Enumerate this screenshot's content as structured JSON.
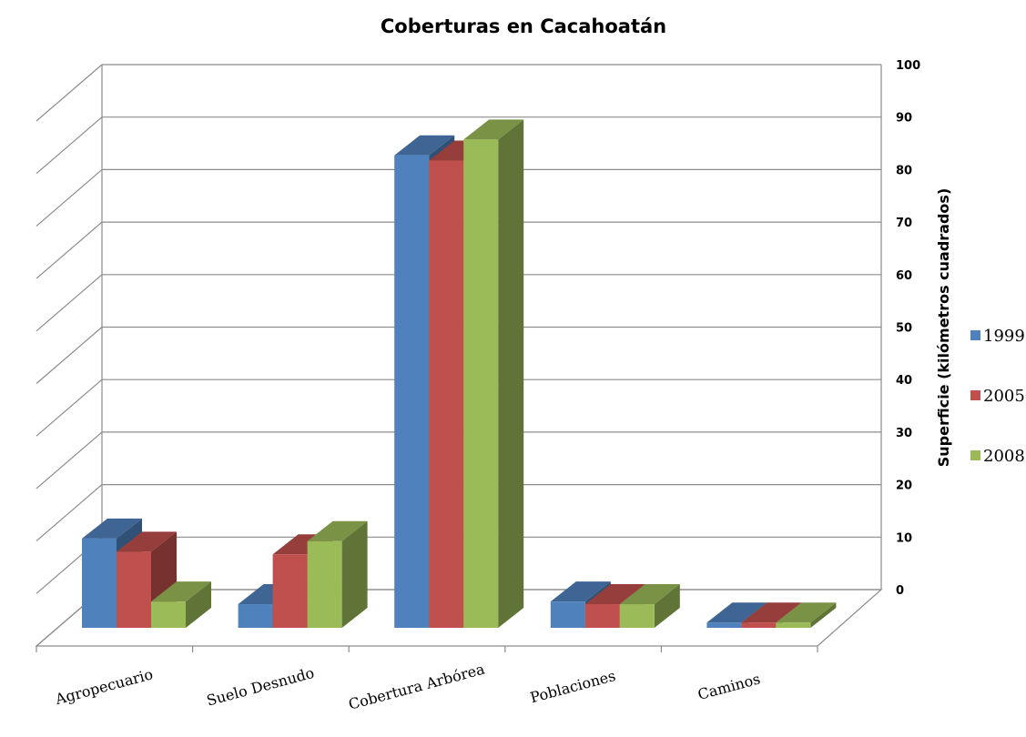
{
  "chart_data": {
    "type": "bar",
    "title": "Coberturas en Cacahoatán",
    "xlabel": "",
    "ylabel": "Superficie (kilómetros cuadrados)",
    "ylim": [
      0,
      100
    ],
    "yticks": [
      0,
      10,
      20,
      30,
      40,
      50,
      60,
      70,
      80,
      90,
      100
    ],
    "categories": [
      "Agropecuario",
      "Suelo Desnudo",
      "Cobertura Arbórea",
      "Poblaciones",
      "Caminos"
    ],
    "series": [
      {
        "name": "1999",
        "values": [
          17,
          4.5,
          90,
          5,
          1
        ],
        "color": "#4f81bd"
      },
      {
        "name": "2005",
        "values": [
          14.5,
          14,
          89,
          4.5,
          1
        ],
        "color": "#c0504d"
      },
      {
        "name": "2008",
        "values": [
          5,
          16.5,
          93,
          4.5,
          1
        ],
        "color": "#9bbb59"
      }
    ],
    "grid": true,
    "legend_position": "right",
    "style": "3d-clustered-column"
  }
}
